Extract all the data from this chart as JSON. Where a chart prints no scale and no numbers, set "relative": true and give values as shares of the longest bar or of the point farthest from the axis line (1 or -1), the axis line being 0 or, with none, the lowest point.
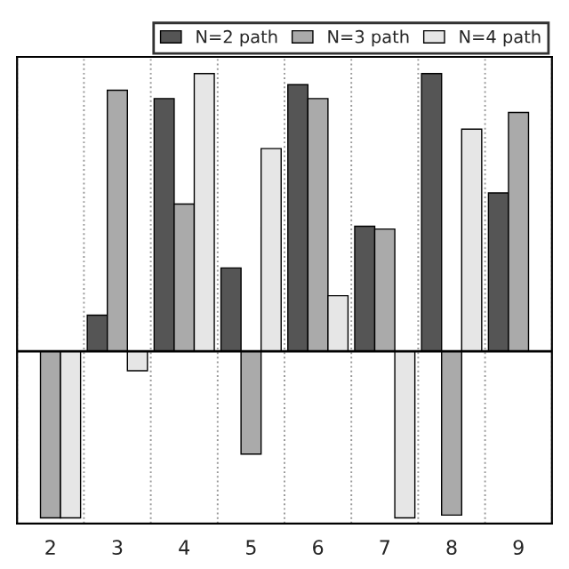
{
  "chart_data": {
    "type": "bar",
    "relative": true,
    "categories": [
      "2",
      "3",
      "4",
      "5",
      "6",
      "7",
      "8",
      "9"
    ],
    "series": [
      {
        "name": "N=2 path",
        "color": "#555555",
        "values": [
          null,
          0.13,
          0.91,
          0.3,
          0.96,
          0.45,
          1.0,
          0.57
        ]
      },
      {
        "name": "N=3 path",
        "color": "#aaaaaa",
        "values": [
          -0.6,
          0.94,
          0.53,
          -0.37,
          0.91,
          0.44,
          -0.59,
          0.86
        ]
      },
      {
        "name": "N=4 path",
        "color": "#e6e6e6",
        "values": [
          -0.6,
          -0.07,
          1.0,
          0.73,
          0.2,
          -0.6,
          0.8,
          null
        ]
      }
    ],
    "grid": "x",
    "legend": "top right"
  }
}
